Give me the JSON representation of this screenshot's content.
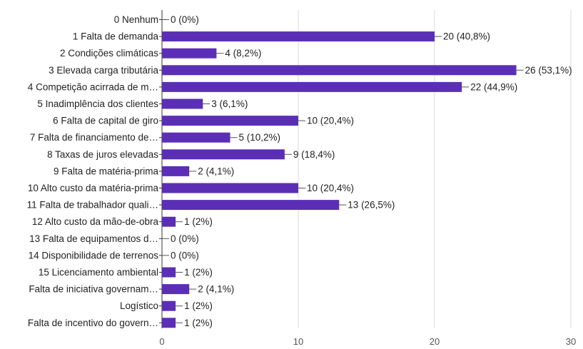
{
  "chart_data": {
    "type": "bar",
    "orientation": "horizontal",
    "title": "",
    "xlabel": "",
    "ylabel": "",
    "xlim": [
      0,
      30
    ],
    "xticks": [
      "0",
      "10",
      "20",
      "30"
    ],
    "grid": true,
    "legend": "none",
    "bar_color": "#5b2fb5",
    "categories": [
      "0 Nenhum",
      "1 Falta de demanda",
      "2 Condições climáticas",
      "3 Elevada carga tributária",
      "4 Competição acirrada de m…",
      "5 Inadimplência dos clientes",
      "6 Falta de capital de giro",
      "7 Falta de financiamento de…",
      "8 Taxas de juros elevadas",
      "9 Falta de matéria-prima",
      "10 Alto custo da matéria-prima",
      "11 Falta de trabalhador quali…",
      "12 Alto custo da mão-de-obra",
      "13 Falta de equipamentos d…",
      "14 Disponibilidade de terrenos",
      "15 Licenciamento ambiental",
      "Falta de iniciativa governam…",
      "Logístico",
      "Falta de incentivo do govern…"
    ],
    "values": [
      0,
      20,
      4,
      26,
      22,
      3,
      10,
      5,
      9,
      2,
      10,
      13,
      1,
      0,
      0,
      1,
      2,
      1,
      1
    ],
    "value_labels": [
      "0 (0%)",
      "20 (40,8%)",
      "4 (8,2%)",
      "26 (53,1%)",
      "22 (44,9%)",
      "3 (6,1%)",
      "10 (20,4%)",
      "5 (10,2%)",
      "9 (18,4%)",
      "2 (4,1%)",
      "10 (20,4%)",
      "13 (26,5%)",
      "1 (2%)",
      "0 (0%)",
      "0 (0%)",
      "1 (2%)",
      "2 (4,1%)",
      "1 (2%)",
      "1 (2%)"
    ]
  }
}
